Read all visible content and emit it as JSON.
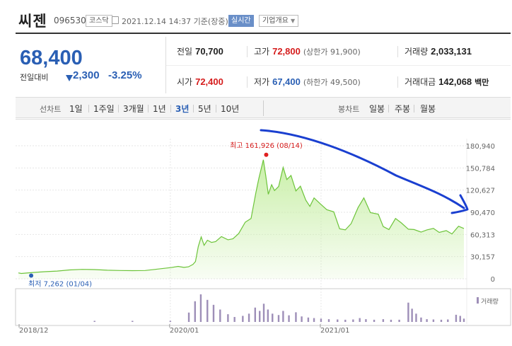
{
  "header": {
    "stock_name": "씨젠",
    "stock_code": "096530",
    "market_badge": "코스닥",
    "timestamp": "2021.12.14 14:37 기준(장중)",
    "live_badge": "실시간",
    "company_info_button": "기업개요"
  },
  "quote": {
    "price": "68,400",
    "change_label": "전일대비",
    "change": "2,300",
    "change_pct": "-3.25%"
  },
  "stats": {
    "prev_close": {
      "label": "전일",
      "value": "70,700"
    },
    "high": {
      "label": "고가",
      "value": "72,800",
      "sub": "(상한가 91,900)"
    },
    "volume": {
      "label": "거래량",
      "value": "2,033,131"
    },
    "open": {
      "label": "시가",
      "value": "72,400"
    },
    "low": {
      "label": "저가",
      "value": "67,400",
      "sub": "(하한가 49,500)"
    },
    "amount": {
      "label": "거래대금",
      "value": "142,068",
      "unit": "백만"
    }
  },
  "period_bar": {
    "line_chart_label": "선차트",
    "periods": [
      "1일",
      "1주일",
      "3개월",
      "1년",
      "3년",
      "5년",
      "10년"
    ],
    "selected_period": "3년",
    "candle_chart_label": "봉차트",
    "candle_periods": [
      "일봉",
      "주봉",
      "월봉"
    ]
  },
  "colors": {
    "price_down": "#2a5fb4",
    "price_up": "#d51c1c",
    "line": "#6dc43a",
    "area": "#c9efa8",
    "volume_bar": "#9e8fb8",
    "annotation_arrow": "#1a3fd0"
  },
  "chart_data": {
    "type": "area",
    "title": "",
    "xlabel": "",
    "ylabel": "",
    "x_ticks": [
      "2018/12",
      "2020/01",
      "2021/01"
    ],
    "y_ticks": [
      0,
      30157,
      60313,
      90470,
      120627,
      150784,
      180940
    ],
    "ylim": [
      0,
      180940
    ],
    "grid": true,
    "legend": "none",
    "high_annotation": "최고 161,926 (08/14)",
    "low_annotation": "최저 7,262 (01/04)",
    "volume_label": "거래량",
    "series": [
      {
        "x": [
          "2018-12-28",
          "2019-01-04",
          "2019-02-01",
          "2019-03-01",
          "2019-04-01",
          "2019-05-01",
          "2019-06-01",
          "2019-07-01",
          "2019-08-01",
          "2019-09-01",
          "2019-10-01",
          "2019-11-01",
          "2019-12-01",
          "2020-01-02",
          "2020-01-20",
          "2020-02-03",
          "2020-02-14",
          "2020-02-25",
          "2020-03-02",
          "2020-03-09",
          "2020-03-16",
          "2020-03-23",
          "2020-03-31",
          "2020-04-10",
          "2020-04-20",
          "2020-05-04",
          "2020-05-20",
          "2020-06-01",
          "2020-06-15",
          "2020-07-01",
          "2020-07-15",
          "2020-07-27",
          "2020-08-03",
          "2020-08-14",
          "2020-08-20",
          "2020-08-26",
          "2020-09-03",
          "2020-09-10",
          "2020-09-20",
          "2020-10-01",
          "2020-10-10",
          "2020-10-20",
          "2020-11-01",
          "2020-11-12",
          "2020-11-25",
          "2020-12-05",
          "2020-12-15",
          "2021-01-01",
          "2021-01-15",
          "2021-02-01",
          "2021-02-15",
          "2021-03-01",
          "2021-03-15",
          "2021-04-01",
          "2021-04-15",
          "2021-05-01",
          "2021-05-20",
          "2021-06-01",
          "2021-06-15",
          "2021-07-01",
          "2021-07-15",
          "2021-08-01",
          "2021-08-15",
          "2021-09-01",
          "2021-09-15",
          "2021-10-01",
          "2021-10-15",
          "2021-11-01",
          "2021-11-15",
          "2021-12-01",
          "2021-12-14"
        ],
        "values": [
          8000,
          7262,
          8600,
          9600,
          10500,
          12000,
          12800,
          12500,
          11600,
          11300,
          11100,
          11300,
          13200,
          15200,
          16800,
          15500,
          16300,
          19500,
          23500,
          44000,
          57000,
          45500,
          52500,
          49500,
          50500,
          57500,
          53000,
          54500,
          61500,
          77000,
          82000,
          118000,
          136500,
          161926,
          139500,
          115000,
          128000,
          120000,
          125500,
          151500,
          135000,
          140500,
          119500,
          126000,
          107000,
          98500,
          110000,
          101000,
          94000,
          91000,
          68000,
          66500,
          75000,
          97000,
          110000,
          90000,
          88000,
          71000,
          67000,
          82000,
          76000,
          67500,
          67000,
          63500,
          66500,
          68500,
          63000,
          65500,
          61000,
          71500,
          68400
        ]
      }
    ],
    "volume_bars": [
      {
        "x": "2019-07-01",
        "h": 0.04
      },
      {
        "x": "2019-10-01",
        "h": 0.04
      },
      {
        "x": "2020-01-01",
        "h": 0.04
      },
      {
        "x": "2020-02-15",
        "h": 0.34
      },
      {
        "x": "2020-03-01",
        "h": 0.75
      },
      {
        "x": "2020-03-15",
        "h": 1.0
      },
      {
        "x": "2020-03-31",
        "h": 0.8
      },
      {
        "x": "2020-04-15",
        "h": 0.62
      },
      {
        "x": "2020-05-01",
        "h": 0.45
      },
      {
        "x": "2020-05-20",
        "h": 0.28
      },
      {
        "x": "2020-06-05",
        "h": 0.18
      },
      {
        "x": "2020-06-25",
        "h": 0.22
      },
      {
        "x": "2020-07-10",
        "h": 0.3
      },
      {
        "x": "2020-07-25",
        "h": 0.52
      },
      {
        "x": "2020-08-05",
        "h": 0.4
      },
      {
        "x": "2020-08-15",
        "h": 0.66
      },
      {
        "x": "2020-08-25",
        "h": 0.45
      },
      {
        "x": "2020-09-05",
        "h": 0.3
      },
      {
        "x": "2020-09-20",
        "h": 0.25
      },
      {
        "x": "2020-10-01",
        "h": 0.4
      },
      {
        "x": "2020-10-15",
        "h": 0.24
      },
      {
        "x": "2020-11-01",
        "h": 0.35
      },
      {
        "x": "2020-11-15",
        "h": 0.2
      },
      {
        "x": "2020-12-01",
        "h": 0.16
      },
      {
        "x": "2020-12-15",
        "h": 0.14
      },
      {
        "x": "2021-01-01",
        "h": 0.12
      },
      {
        "x": "2021-01-20",
        "h": 0.1
      },
      {
        "x": "2021-02-10",
        "h": 0.09
      },
      {
        "x": "2021-03-01",
        "h": 0.08
      },
      {
        "x": "2021-03-20",
        "h": 0.09
      },
      {
        "x": "2021-04-05",
        "h": 0.14
      },
      {
        "x": "2021-04-20",
        "h": 0.1
      },
      {
        "x": "2021-05-10",
        "h": 0.08
      },
      {
        "x": "2021-06-01",
        "h": 0.1
      },
      {
        "x": "2021-06-20",
        "h": 0.08
      },
      {
        "x": "2021-07-10",
        "h": 0.08
      },
      {
        "x": "2021-08-01",
        "h": 0.7
      },
      {
        "x": "2021-08-10",
        "h": 0.48
      },
      {
        "x": "2021-08-20",
        "h": 0.3
      },
      {
        "x": "2021-09-01",
        "h": 0.16
      },
      {
        "x": "2021-09-15",
        "h": 0.1
      },
      {
        "x": "2021-10-01",
        "h": 0.09
      },
      {
        "x": "2021-10-20",
        "h": 0.08
      },
      {
        "x": "2021-11-05",
        "h": 0.09
      },
      {
        "x": "2021-11-25",
        "h": 0.26
      },
      {
        "x": "2021-12-05",
        "h": 0.22
      },
      {
        "x": "2021-12-14",
        "h": 0.12
      }
    ]
  }
}
